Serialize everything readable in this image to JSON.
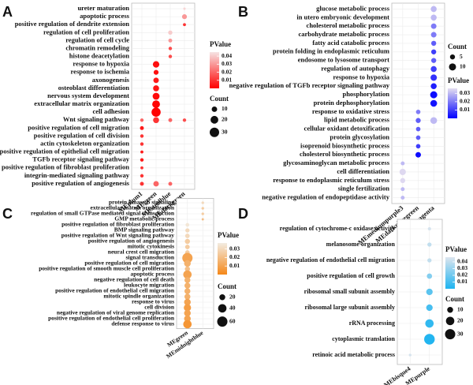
{
  "chart_data": [
    {
      "type": "dot",
      "panel_label": "A",
      "x": [
        "MEplum1",
        "MEgreen",
        "MEsteelblue",
        "MEdarkgreen"
      ],
      "categories": [
        "ureter maturation",
        "apoptotic process",
        "positive regulation of dendrite extension",
        "regulation of cell proliferation",
        "regulation of cell cycle",
        "chromatin remodeling",
        "histone deacetylation",
        "response to hypoxia",
        "response to ischemia",
        "axonogenesis",
        "osteoblast differentiation",
        "nervous system development",
        "extracellular matrix organization",
        "cell adhesion",
        "Wnt signaling pathway",
        "positive regulation of cell migration",
        "positive regulation of cell division",
        "actin cytoskeleton organization",
        "positive regulation of epithelial cell migration",
        "TGFb receptor signaling pathway",
        "positive regulation of fibroblast proliferation",
        "integrin-mediated signaling pathway",
        "positive regulation of angiogenesis"
      ],
      "pvalue": [
        [
          null,
          null,
          null,
          0.042
        ],
        [
          null,
          null,
          null,
          0.03
        ],
        [
          null,
          null,
          null,
          0.01
        ],
        [
          null,
          null,
          0.04,
          null
        ],
        [
          null,
          null,
          0.03,
          null
        ],
        [
          null,
          null,
          0.015,
          null
        ],
        [
          null,
          null,
          0.015,
          null
        ],
        [
          null,
          0.003,
          null,
          null
        ],
        [
          null,
          0.003,
          null,
          null
        ],
        [
          null,
          0.005,
          null,
          null
        ],
        [
          null,
          0.004,
          null,
          null
        ],
        [
          null,
          0.002,
          null,
          null
        ],
        [
          null,
          0.001,
          null,
          null
        ],
        [
          null,
          0.0005,
          null,
          null
        ],
        [
          0.02,
          0.01,
          0.02,
          0.015
        ],
        [
          0.005,
          null,
          null,
          null
        ],
        [
          0.01,
          null,
          null,
          null
        ],
        [
          0.01,
          null,
          null,
          null
        ],
        [
          0.005,
          null,
          null,
          null
        ],
        [
          0.005,
          null,
          null,
          null
        ],
        [
          0.01,
          null,
          null,
          null
        ],
        [
          0.01,
          null,
          null,
          null
        ],
        [
          0.01,
          0.02,
          0.02,
          null
        ]
      ],
      "count": [
        [
          null,
          null,
          null,
          2
        ],
        [
          null,
          null,
          null,
          8
        ],
        [
          null,
          null,
          null,
          3
        ],
        [
          null,
          null,
          6,
          null
        ],
        [
          null,
          null,
          5,
          null
        ],
        [
          null,
          null,
          4,
          null
        ],
        [
          null,
          null,
          4,
          null
        ],
        [
          null,
          14,
          null,
          null
        ],
        [
          null,
          8,
          null,
          null
        ],
        [
          null,
          10,
          null,
          null
        ],
        [
          null,
          12,
          null,
          null
        ],
        [
          null,
          16,
          null,
          null
        ],
        [
          null,
          20,
          null,
          null
        ],
        [
          null,
          28,
          null,
          null
        ],
        [
          4,
          12,
          5,
          4
        ],
        [
          5,
          null,
          null,
          null
        ],
        [
          4,
          null,
          null,
          null
        ],
        [
          4,
          null,
          null,
          null
        ],
        [
          3,
          null,
          null,
          null
        ],
        [
          4,
          null,
          null,
          null
        ],
        [
          3,
          null,
          null,
          null
        ],
        [
          4,
          null,
          null,
          null
        ],
        [
          5,
          10,
          5,
          null
        ]
      ],
      "color_title": "PValue",
      "clim": [
        0,
        0.045
      ],
      "color_ticks": [
        0.04,
        0.03,
        0.02,
        0.01
      ],
      "colors": [
        "#ff0000",
        "#f6e4e4"
      ],
      "size_title": "Count",
      "count_ticks": [
        10,
        20,
        30
      ]
    },
    {
      "type": "dot",
      "panel_label": "B",
      "x": [
        "MEmediumpurple3",
        "MEdarkolivegreen",
        "MEmagenta"
      ],
      "categories": [
        "glucose metabolic process",
        "in utero embryonic development",
        "cholesterol metabolic process",
        "carbohydrate metabolic process",
        "fatty acid catabolic process",
        "protein folding in endoplasmic reticulum",
        "endosome to lysosome transport",
        "regulation of autophagy",
        "response to hypoxia",
        "negative regulation of TGFb receptor signaling pathway",
        "phosphorylation",
        "protein dephosphorylation",
        "response to oxidative stress",
        "lipid metabolic process",
        "cellular oxidant detoxification",
        "protein glycosylation",
        "isoprenoid biosynthetic process",
        "cholesterol biosynthetic process",
        "glycosaminoglycan metabolic process",
        "cell differentiation",
        "response to endoplasmic reticulum stress",
        "single fertilization",
        "negative regulation of endopeptidase activity"
      ],
      "pvalue": [
        [
          null,
          null,
          0.03
        ],
        [
          null,
          null,
          0.03
        ],
        [
          null,
          null,
          0.02
        ],
        [
          null,
          null,
          0.02
        ],
        [
          null,
          null,
          0.015
        ],
        [
          null,
          null,
          0.01
        ],
        [
          null,
          null,
          0.015
        ],
        [
          null,
          null,
          0.01
        ],
        [
          null,
          null,
          0.008
        ],
        [
          null,
          null,
          0.005
        ],
        [
          null,
          null,
          0.002
        ],
        [
          null,
          null,
          0.003
        ],
        [
          null,
          0.02,
          null
        ],
        [
          null,
          0.015,
          0.03
        ],
        [
          null,
          0.015,
          null
        ],
        [
          null,
          0.015,
          null
        ],
        [
          null,
          0.01,
          null
        ],
        [
          null,
          0.002,
          null
        ],
        [
          0.03,
          null,
          null
        ],
        [
          0.035,
          null,
          null
        ],
        [
          0.035,
          null,
          null
        ],
        [
          0.03,
          null,
          null
        ],
        [
          0.03,
          null,
          null
        ]
      ],
      "count": [
        [
          null,
          null,
          7
        ],
        [
          null,
          null,
          7
        ],
        [
          null,
          null,
          6
        ],
        [
          null,
          null,
          6
        ],
        [
          null,
          null,
          5
        ],
        [
          null,
          null,
          5
        ],
        [
          null,
          null,
          5
        ],
        [
          null,
          null,
          7
        ],
        [
          null,
          null,
          8
        ],
        [
          null,
          null,
          7
        ],
        [
          null,
          null,
          10
        ],
        [
          null,
          null,
          9
        ],
        [
          null,
          4,
          null
        ],
        [
          null,
          5,
          9
        ],
        [
          null,
          4,
          null
        ],
        [
          null,
          4,
          null
        ],
        [
          null,
          4,
          null
        ],
        [
          null,
          6,
          null
        ],
        [
          3,
          null,
          null
        ],
        [
          8,
          null,
          null
        ],
        [
          5,
          null,
          null
        ],
        [
          3,
          null,
          null
        ],
        [
          3,
          null,
          null
        ]
      ],
      "color_title": "PValue",
      "clim": [
        0,
        0.036
      ],
      "color_ticks": [
        0.03,
        0.02,
        0.01
      ],
      "colors": [
        "#0000ff",
        "#e4def0"
      ],
      "size_title": "Count",
      "count_ticks": [
        5,
        10
      ]
    },
    {
      "type": "dot",
      "panel_label": "C",
      "x": [
        "MEgreen",
        "MEmidnightblue"
      ],
      "categories": [
        "protein kinase B signaling",
        "extracellular matrix organization",
        "regulation of small GTPase mediated signal transduction",
        "GMP metabolic process",
        "positive regulation of fibroblast proliferation",
        "BMP signaling pathway",
        "positive regulation of Wnt signaling pathway",
        "positive regulation of angiogenesis",
        "mitotic cytokinesis",
        "neural crest cell migration",
        "signal transduction",
        "positive regulation of cell migration",
        "positive regulation of smooth muscle cell proliferation",
        "apoptotic process",
        "negative regulation of cell death",
        "leukocyte migration",
        "positive regulation of endothelial cell migration",
        "mitotic spindle organization",
        "response to virus",
        "cell division",
        "negative regulation of viral genome replication",
        "positive regulation of endothelial cell proliferation",
        "defense response to virus"
      ],
      "pvalue": [
        [
          null,
          0.03
        ],
        [
          null,
          0.025
        ],
        [
          null,
          0.025
        ],
        [
          null,
          0.02
        ],
        [
          0.035,
          null
        ],
        [
          0.03,
          null
        ],
        [
          0.03,
          null
        ],
        [
          0.025,
          null
        ],
        [
          0.025,
          null
        ],
        [
          0.025,
          null
        ],
        [
          0.01,
          null
        ],
        [
          0.015,
          null
        ],
        [
          0.02,
          null
        ],
        [
          0.01,
          null
        ],
        [
          0.015,
          null
        ],
        [
          0.015,
          null
        ],
        [
          0.015,
          null
        ],
        [
          0.015,
          null
        ],
        [
          0.01,
          null
        ],
        [
          0.008,
          null
        ],
        [
          0.01,
          null
        ],
        [
          0.01,
          null
        ],
        [
          0.005,
          null
        ]
      ],
      "count": [
        [
          null,
          4
        ],
        [
          null,
          4
        ],
        [
          null,
          4
        ],
        [
          null,
          3
        ],
        [
          8,
          null
        ],
        [
          10,
          null
        ],
        [
          12,
          null
        ],
        [
          15,
          null
        ],
        [
          12,
          null
        ],
        [
          12,
          null
        ],
        [
          60,
          null
        ],
        [
          25,
          null
        ],
        [
          15,
          null
        ],
        [
          40,
          null
        ],
        [
          20,
          null
        ],
        [
          20,
          null
        ],
        [
          20,
          null
        ],
        [
          20,
          null
        ],
        [
          25,
          null
        ],
        [
          30,
          null
        ],
        [
          25,
          null
        ],
        [
          25,
          null
        ],
        [
          40,
          null
        ]
      ],
      "color_title": "PValue",
      "clim": [
        0,
        0.037
      ],
      "color_ticks": [
        0.03,
        0.02,
        0.01
      ],
      "colors": [
        "#f5881a",
        "#f3ece2"
      ],
      "size_title": "Count",
      "count_ticks": [
        20,
        40,
        60
      ]
    },
    {
      "type": "dot",
      "panel_label": "D",
      "x": [
        "MEbisque4",
        "MEpurple"
      ],
      "categories": [
        "regulation of cytochrome-c oxidase activity",
        "melanosome organization",
        "negative regulation of endothelial cell migration",
        "positive regulation of cell growth",
        "ribosomal small subunit assembly",
        "ribosomal large subunit assembly",
        "rRNA processing",
        "cytoplasmic translation",
        "retinoic acid metabolic process"
      ],
      "pvalue": [
        [
          null,
          0.045
        ],
        [
          null,
          0.04
        ],
        [
          null,
          0.04
        ],
        [
          null,
          0.025
        ],
        [
          null,
          0.015
        ],
        [
          null,
          0.01
        ],
        [
          null,
          0.005
        ],
        [
          null,
          0.001
        ],
        [
          0.045,
          null
        ]
      ],
      "count": [
        [
          null,
          3
        ],
        [
          null,
          5
        ],
        [
          null,
          5
        ],
        [
          null,
          8
        ],
        [
          null,
          12
        ],
        [
          null,
          12
        ],
        [
          null,
          20
        ],
        [
          null,
          32
        ],
        [
          2,
          null
        ]
      ],
      "color_title": "PValue",
      "clim": [
        0,
        0.047
      ],
      "color_ticks": [
        0.04,
        0.03,
        0.02,
        0.01
      ],
      "colors": [
        "#1eb4f0",
        "#dde5ee"
      ],
      "size_title": "Count",
      "count_ticks": [
        10,
        20,
        30
      ]
    }
  ]
}
